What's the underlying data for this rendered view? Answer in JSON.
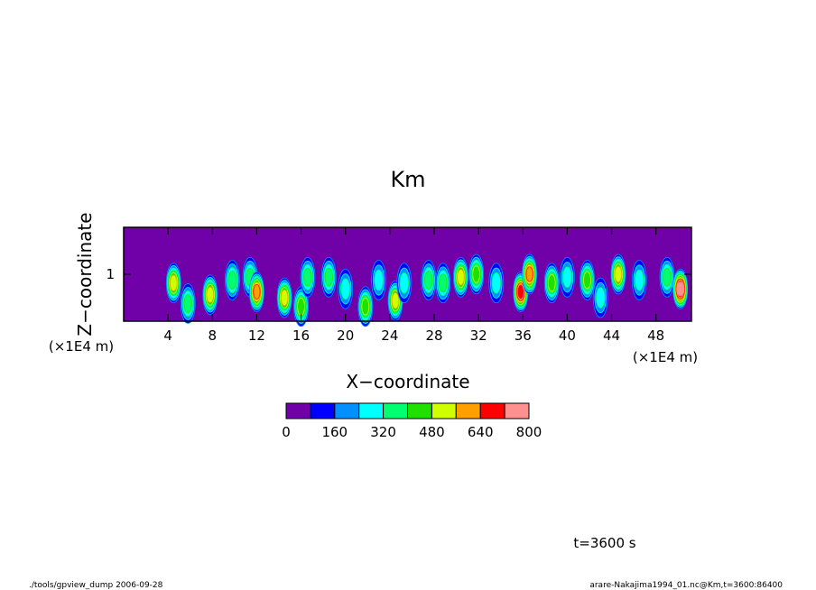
{
  "chart_data": {
    "type": "heatmap",
    "title": "Km",
    "xlabel": "X−coordinate",
    "ylabel": "Z−coordinate",
    "x_unit": "(×1E4 m)",
    "y_unit": "(×1E4 m)",
    "xlim": [
      0,
      51.2
    ],
    "ylim": [
      0.2,
      1.8
    ],
    "x_ticks": [
      {
        "value": 4,
        "label": "4"
      },
      {
        "value": 8,
        "label": "8"
      },
      {
        "value": 12,
        "label": "12"
      },
      {
        "value": 16,
        "label": "16"
      },
      {
        "value": 20,
        "label": "20"
      },
      {
        "value": 24,
        "label": "24"
      },
      {
        "value": 28,
        "label": "28"
      },
      {
        "value": 32,
        "label": "32"
      },
      {
        "value": 36,
        "label": "36"
      },
      {
        "value": 40,
        "label": "40"
      },
      {
        "value": 44,
        "label": "44"
      },
      {
        "value": 48,
        "label": "48"
      }
    ],
    "y_ticks": [
      {
        "value": 1,
        "label": "1"
      }
    ],
    "colorbar": {
      "levels": [
        0,
        80,
        160,
        240,
        320,
        400,
        480,
        560,
        640,
        720,
        800
      ],
      "colors": [
        "#7000a8",
        "#0000ff",
        "#0090ff",
        "#00ffff",
        "#00ff70",
        "#20e000",
        "#d0ff00",
        "#ffa000",
        "#ff0000",
        "#ff9090"
      ],
      "labels": [
        {
          "value": 0,
          "label": "0"
        },
        {
          "value": 160,
          "label": "160"
        },
        {
          "value": 320,
          "label": "320"
        },
        {
          "value": 480,
          "label": "480"
        },
        {
          "value": 640,
          "label": "640"
        },
        {
          "value": 800,
          "label": "800"
        }
      ]
    },
    "features": [
      {
        "x": 4.5,
        "z": 0.85,
        "peak": 500
      },
      {
        "x": 5.8,
        "z": 0.5,
        "peak": 320
      },
      {
        "x": 7.8,
        "z": 0.65,
        "peak": 480
      },
      {
        "x": 9.8,
        "z": 0.9,
        "peak": 330
      },
      {
        "x": 11.4,
        "z": 0.95,
        "peak": 340
      },
      {
        "x": 12.0,
        "z": 0.7,
        "peak": 620
      },
      {
        "x": 14.5,
        "z": 0.6,
        "peak": 520
      },
      {
        "x": 16.0,
        "z": 0.45,
        "peak": 420
      },
      {
        "x": 16.6,
        "z": 0.95,
        "peak": 330
      },
      {
        "x": 18.5,
        "z": 0.95,
        "peak": 350
      },
      {
        "x": 20.0,
        "z": 0.75,
        "peak": 250
      },
      {
        "x": 21.8,
        "z": 0.45,
        "peak": 400
      },
      {
        "x": 23.0,
        "z": 0.9,
        "peak": 240
      },
      {
        "x": 24.5,
        "z": 0.55,
        "peak": 520
      },
      {
        "x": 25.3,
        "z": 0.85,
        "peak": 260
      },
      {
        "x": 27.5,
        "z": 0.9,
        "peak": 330
      },
      {
        "x": 28.8,
        "z": 0.85,
        "peak": 330
      },
      {
        "x": 30.4,
        "z": 0.95,
        "peak": 550
      },
      {
        "x": 31.8,
        "z": 1.0,
        "peak": 420
      },
      {
        "x": 33.6,
        "z": 0.85,
        "peak": 250
      },
      {
        "x": 35.8,
        "z": 0.7,
        "peak": 700
      },
      {
        "x": 36.6,
        "z": 1.0,
        "peak": 580
      },
      {
        "x": 38.6,
        "z": 0.85,
        "peak": 400
      },
      {
        "x": 40.0,
        "z": 0.95,
        "peak": 300
      },
      {
        "x": 41.8,
        "z": 0.9,
        "peak": 420
      },
      {
        "x": 43.0,
        "z": 0.6,
        "peak": 300
      },
      {
        "x": 44.6,
        "z": 1.0,
        "peak": 520
      },
      {
        "x": 46.5,
        "z": 0.9,
        "peak": 250
      },
      {
        "x": 49.0,
        "z": 0.95,
        "peak": 330
      },
      {
        "x": 50.2,
        "z": 0.75,
        "peak": 760
      }
    ]
  },
  "annotations": {
    "time": "t=3600 s",
    "footer_left": "./tools/gpview_dump  2006-09-28",
    "footer_right": "arare-Nakajima1994_01.nc@Km,t=3600:86400"
  }
}
